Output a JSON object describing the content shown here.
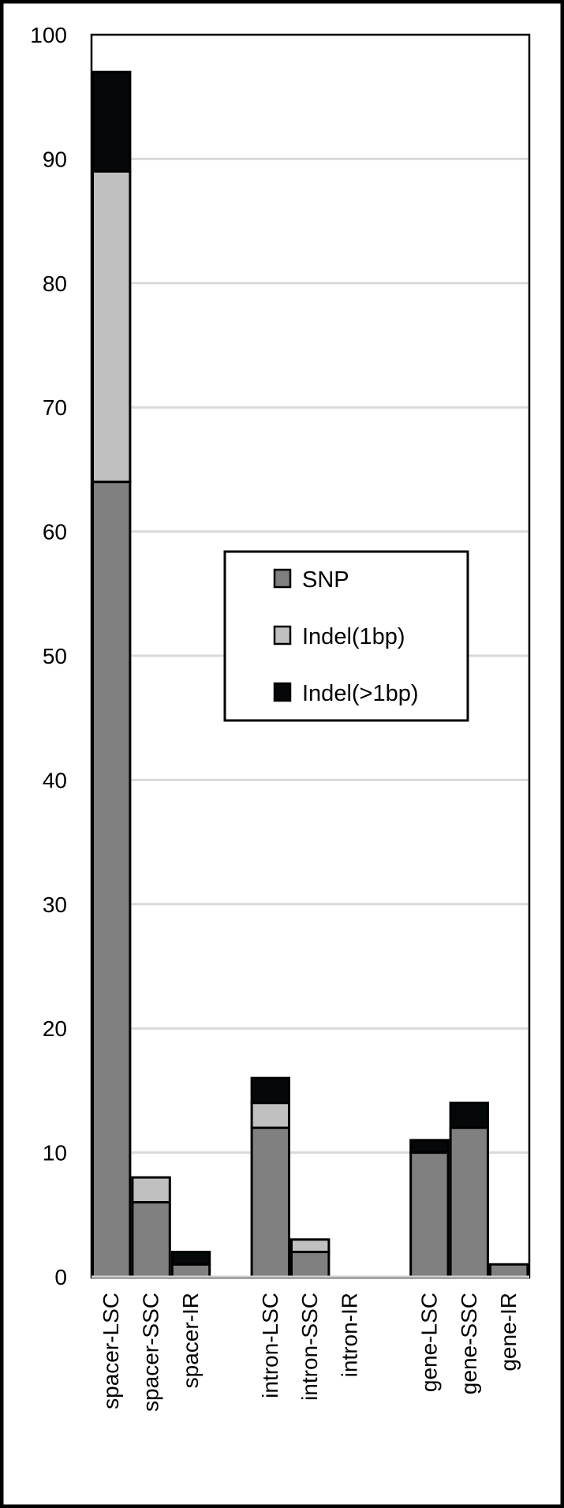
{
  "chart_data": {
    "type": "bar",
    "stacked": true,
    "categories": [
      "spacer-LSC",
      "spacer-SSC",
      "spacer-IR",
      "",
      "intron-LSC",
      "intron-SSC",
      "intron-IR",
      "",
      "gene-LSC",
      "gene-SSC",
      "gene-IR"
    ],
    "series": [
      {
        "name": "SNP",
        "color": "#808080",
        "values": [
          64,
          6,
          1,
          null,
          12,
          2,
          0,
          null,
          10,
          12,
          1
        ]
      },
      {
        "name": "Indel(1bp)",
        "color": "#c0c0c0",
        "values": [
          25,
          2,
          0,
          null,
          2,
          1,
          0,
          null,
          0,
          0,
          0
        ]
      },
      {
        "name": "Indel(>1bp)",
        "color": "#050808",
        "values": [
          8,
          0,
          1,
          null,
          2,
          0,
          0,
          null,
          1,
          2,
          0
        ]
      }
    ],
    "ylim": [
      0,
      100
    ],
    "yticks": [
      "0",
      "10",
      "20",
      "30",
      "40",
      "50",
      "60",
      "70",
      "80",
      "90",
      "100"
    ],
    "grid": true,
    "legend_position": "center",
    "title": "",
    "xlabel": "",
    "ylabel": ""
  }
}
